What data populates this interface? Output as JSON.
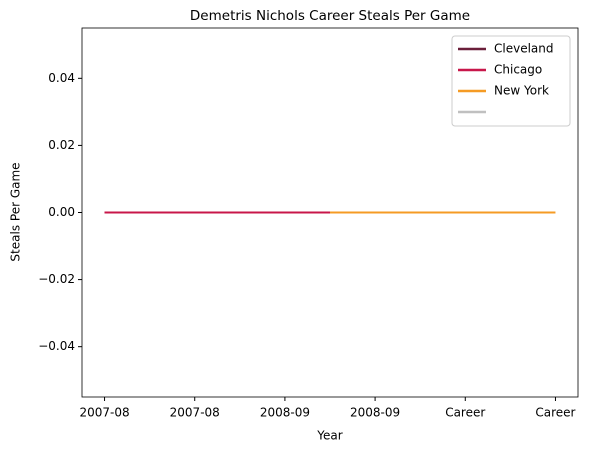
{
  "chart_data": {
    "type": "line",
    "title": "Demetris Nichols Career Steals Per Game",
    "xlabel": "Year",
    "ylabel": "Steals Per Game",
    "xlim": [
      -0.25,
      5.25
    ],
    "xticks": [
      {
        "value": 0,
        "label": "2007-08"
      },
      {
        "value": 1,
        "label": "2007-08"
      },
      {
        "value": 2,
        "label": "2008-09"
      },
      {
        "value": 3,
        "label": "2008-09"
      },
      {
        "value": 4,
        "label": "Career"
      },
      {
        "value": 5,
        "label": "Career"
      }
    ],
    "ylim": [
      -0.055,
      0.055
    ],
    "yticks": [
      {
        "value": -0.04,
        "label": "−0.04"
      },
      {
        "value": -0.02,
        "label": "−0.02"
      },
      {
        "value": 0,
        "label": "0.00"
      },
      0.02,
      0.04
    ],
    "legend": "upper right",
    "series": [
      {
        "name": "Cleveland",
        "color": "#6a1f3a",
        "x": [
          0,
          1
        ],
        "values": [
          0,
          0
        ]
      },
      {
        "name": "Chicago",
        "color": "#c8174a",
        "x": [
          0,
          1,
          2,
          2.5
        ],
        "values": [
          0,
          0,
          0,
          0
        ]
      },
      {
        "name": "New York",
        "color": "#f59b24",
        "x": [
          2.5,
          3,
          4,
          5
        ],
        "values": [
          0,
          0,
          0,
          0
        ]
      },
      {
        "color": "#c0c0c0",
        "x": [],
        "values": []
      }
    ]
  }
}
